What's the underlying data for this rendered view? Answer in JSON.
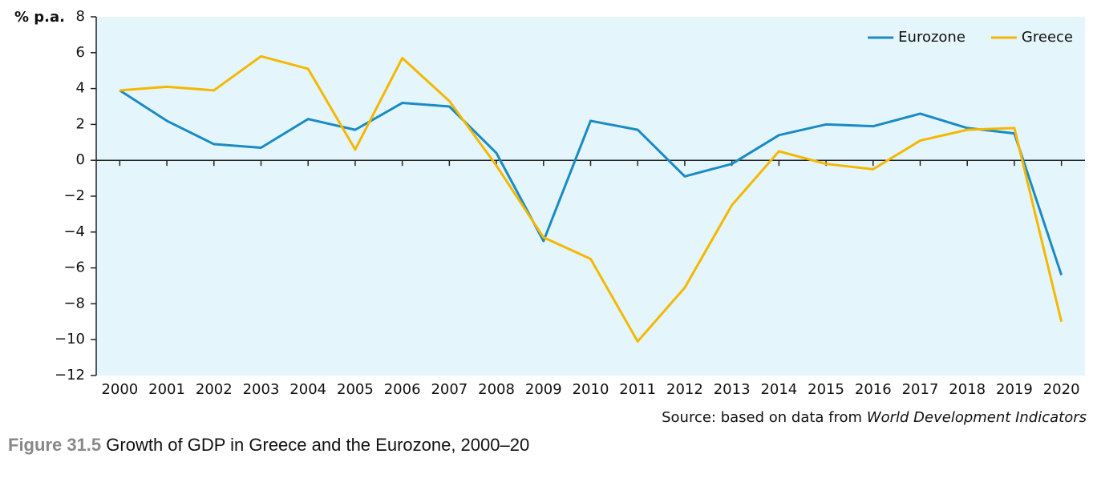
{
  "chart_data": {
    "type": "line",
    "y_label": "% p.a.",
    "categories": [
      "2000",
      "2001",
      "2002",
      "2003",
      "2004",
      "2005",
      "2006",
      "2007",
      "2008",
      "2009",
      "2010",
      "2011",
      "2012",
      "2013",
      "2014",
      "2015",
      "2016",
      "2017",
      "2018",
      "2019",
      "2020"
    ],
    "series": [
      {
        "name": "Eurozone",
        "color": "#1a8bc4",
        "values": [
          3.9,
          2.2,
          0.9,
          0.7,
          2.3,
          1.7,
          3.2,
          3.0,
          0.4,
          -4.5,
          2.2,
          1.7,
          -0.9,
          -0.2,
          1.4,
          2.0,
          1.9,
          2.6,
          1.8,
          1.5,
          -6.4
        ]
      },
      {
        "name": "Greece",
        "color": "#f5b800",
        "values": [
          3.9,
          4.1,
          3.9,
          5.8,
          5.1,
          0.6,
          5.7,
          3.3,
          -0.3,
          -4.3,
          -5.5,
          -10.1,
          -7.1,
          -2.5,
          0.5,
          -0.2,
          -0.5,
          1.1,
          1.7,
          1.8,
          -9.0
        ]
      }
    ],
    "ylim": [
      -12,
      8
    ],
    "yticks": [
      {
        "value": -12,
        "label": "−12"
      },
      {
        "value": -10,
        "label": "−10"
      },
      {
        "value": -8,
        "label": "−8"
      },
      {
        "value": -6,
        "label": "−6"
      },
      {
        "value": -4,
        "label": "−4"
      },
      {
        "value": -2,
        "label": "−2"
      },
      0,
      2,
      4,
      6,
      8
    ],
    "legend": "top-right",
    "source_prefix": "Source: based on data from",
    "source_title": "World Development Indicators",
    "figure_label": "Figure 31.5",
    "caption": "Growth of GDP in Greece and the Eurozone, 2000–20"
  }
}
